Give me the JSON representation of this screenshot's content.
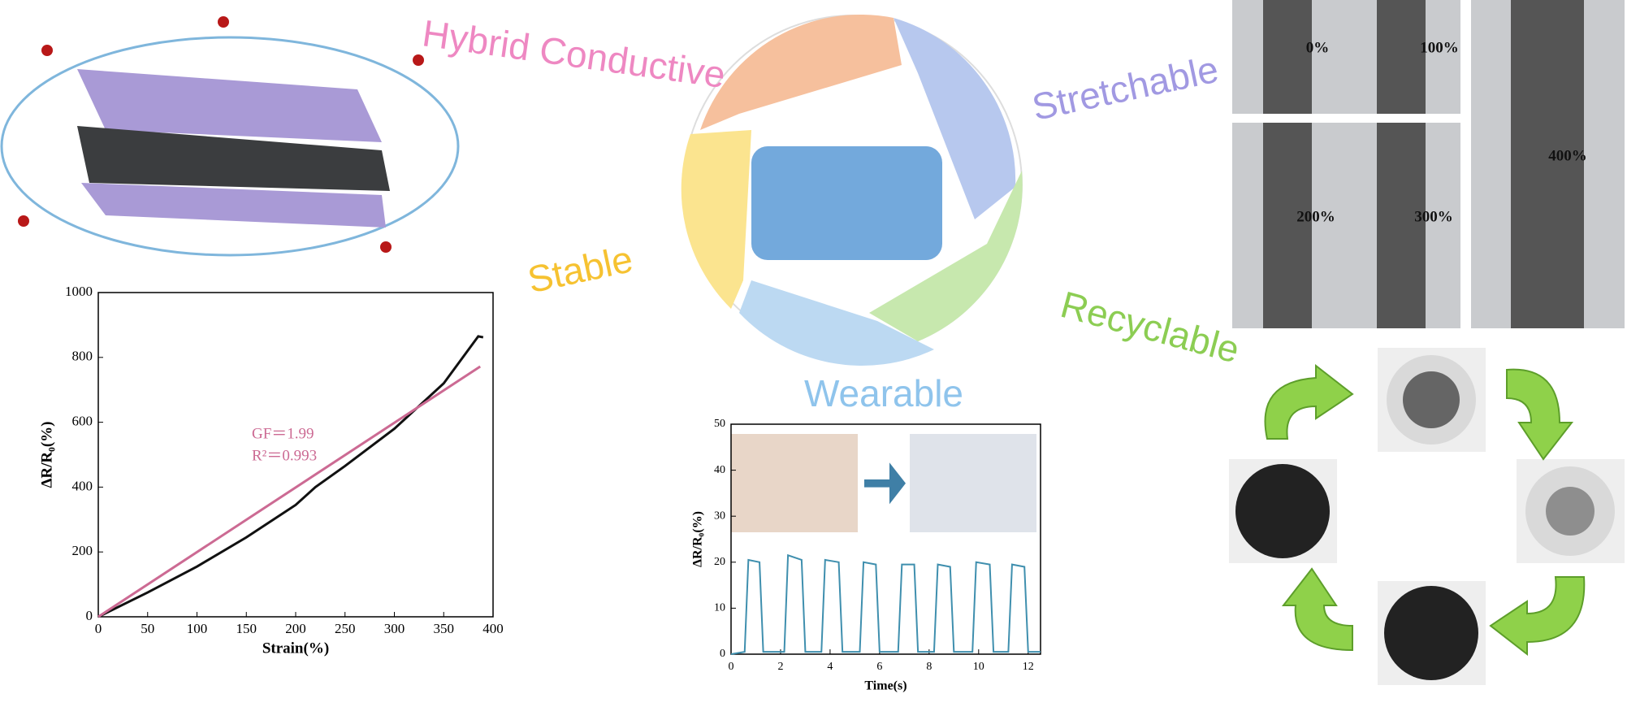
{
  "labels": {
    "hybrid": "Hybrid Conductive",
    "stretchable": "Stretchable",
    "stable": "Stable",
    "wearable": "Wearable",
    "recyclable": "Recyclable"
  },
  "stretch_labels": [
    "0%",
    "100%",
    "200%",
    "300%",
    "400%"
  ],
  "chart_data": [
    {
      "type": "line",
      "x_label": "Strain(%)",
      "y_label": "ΔR/R₀(%)",
      "annotations": [
        "GF＝1.99",
        "R²＝0.993"
      ],
      "xlim": [
        0,
        400
      ],
      "xticks": [
        0,
        50,
        100,
        150,
        200,
        250,
        300,
        350,
        400
      ],
      "ylim": [
        0,
        1000
      ],
      "yticks": [
        0,
        200,
        400,
        600,
        800,
        1000
      ],
      "series": [
        {
          "color": "#111111",
          "x": [
            0,
            50,
            100,
            150,
            200,
            220,
            250,
            300,
            350,
            385,
            390
          ],
          "values": [
            0,
            75,
            155,
            245,
            345,
            400,
            465,
            580,
            720,
            865,
            862
          ]
        },
        {
          "color": "#cc6a93",
          "x": [
            0,
            387
          ],
          "values": [
            0,
            772
          ]
        }
      ]
    },
    {
      "type": "line",
      "x_label": "Time(s)",
      "y_label": "ΔR/R₀(%)",
      "xlim": [
        0,
        12.5
      ],
      "xticks": [
        0,
        2,
        4,
        6,
        8,
        10,
        12
      ],
      "ylim": [
        0,
        50
      ],
      "yticks": [
        0,
        10,
        20,
        30,
        40,
        50
      ],
      "series": [
        {
          "color": "#3f8fae",
          "x": [
            0,
            0.55,
            0.7,
            1.15,
            1.3,
            2.15,
            2.3,
            2.85,
            3.0,
            3.65,
            3.8,
            4.35,
            4.5,
            5.2,
            5.35,
            5.85,
            6.0,
            6.75,
            6.9,
            7.4,
            7.55,
            8.2,
            8.35,
            8.85,
            9.0,
            9.75,
            9.9,
            10.45,
            10.6,
            11.2,
            11.35,
            11.85,
            12.0,
            12.5
          ],
          "values": [
            0,
            0.5,
            20.5,
            20,
            0.5,
            0.5,
            21.5,
            20.5,
            0.5,
            0.5,
            20.5,
            20,
            0.5,
            0.5,
            20,
            19.5,
            0.5,
            0.5,
            19.5,
            19.5,
            0.5,
            0.5,
            19.5,
            19,
            0.5,
            0.5,
            20,
            19.5,
            0.5,
            0.5,
            19.5,
            19,
            0.5,
            0.5
          ]
        }
      ]
    }
  ]
}
